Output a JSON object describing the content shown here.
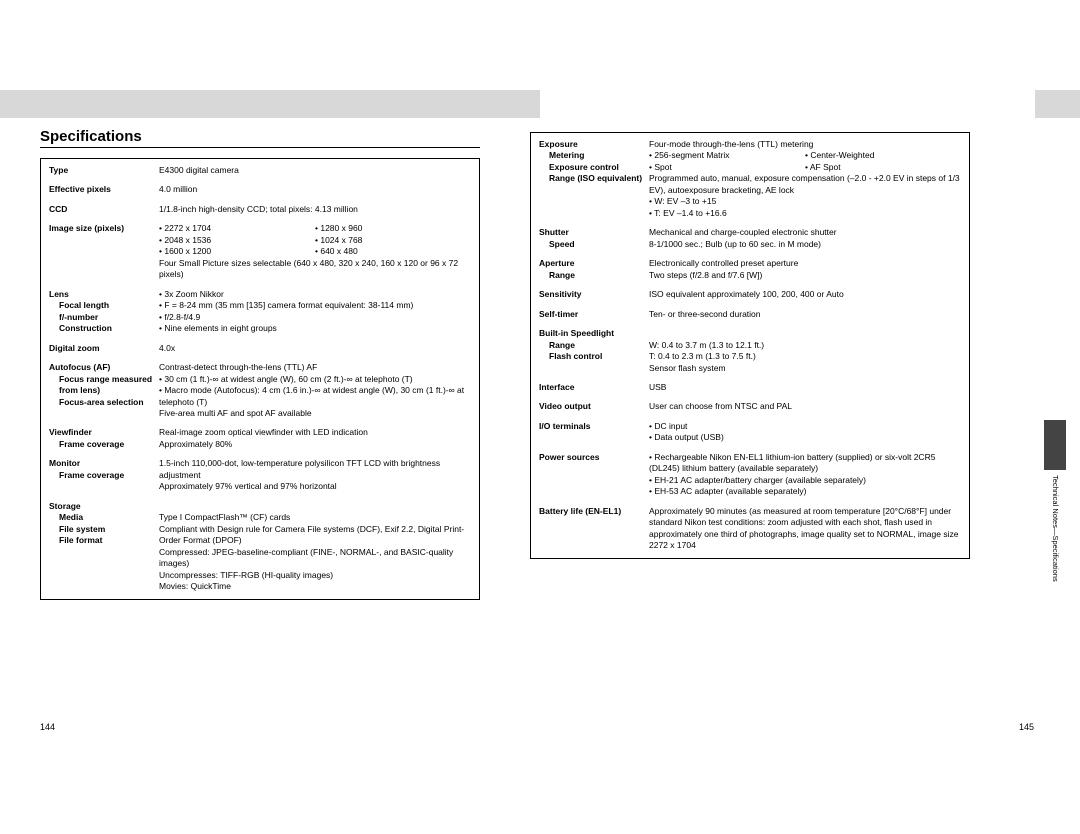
{
  "title": "Specifications",
  "page_left": "144",
  "page_right": "145",
  "side_label": "Technical Notes—Specifications",
  "left_rows": [
    {
      "label": "Type",
      "value": "E4300 digital camera"
    },
    {
      "label": "Effective pixels",
      "value": "4.0 million"
    },
    {
      "label": "CCD",
      "value": "1/1.8-inch high-density CCD; total pixels: 4.13 million"
    },
    {
      "label": "Image size (pixels)",
      "value_html": "sizes"
    },
    {
      "label": "Lens",
      "sublabels": [
        "Focal length",
        "",
        "f/-number",
        "Construction"
      ],
      "value_html": "lens"
    },
    {
      "label": "Digital zoom",
      "value": "4.0x"
    },
    {
      "label": "Autofocus (AF)",
      "sublabels": [
        "Focus range measured from lens)",
        "",
        "",
        "Focus-area selection"
      ],
      "value_html": "af"
    },
    {
      "label": "Viewfinder",
      "sublabels": [
        "Frame coverage"
      ],
      "value_html": "vf"
    },
    {
      "label": "Monitor",
      "sublabels": [
        "",
        "Frame coverage"
      ],
      "value_html": "mon"
    },
    {
      "label": "Storage",
      "sublabels": [
        "Media",
        "File system",
        "",
        "File format"
      ],
      "value_html": "storage"
    }
  ],
  "sizes": {
    "col1": [
      "• 2272 x 1704",
      "• 2048 x 1536",
      "• 1600 x 1200"
    ],
    "col2": [
      "• 1280 x 960",
      "• 1024 x 768",
      "• 640 x 480"
    ],
    "tail": "Four Small Picture sizes selectable (640 x 480, 320 x 240, 160 x 120 or 96 x 72 pixels)"
  },
  "lens": {
    "lines": [
      "• 3x Zoom Nikkor",
      "• F = 8-24 mm (35 mm [135] camera format equivalent: 38-114 mm)",
      "• f/2.8-f/4.9",
      "• Nine elements in eight groups"
    ]
  },
  "af": {
    "lines": [
      "Contrast-detect through-the-lens (TTL) AF",
      "• 30 cm (1 ft.)-∞ at widest angle (W), 60 cm (2 ft.)-∞ at telephoto (T)",
      "• Macro mode (Autofocus): 4 cm (1.6 in.)-∞ at widest angle (W), 30 cm (1 ft.)-∞ at telephoto (T)",
      "Five-area multi AF and spot AF available"
    ]
  },
  "vf": {
    "lines": [
      "Real-image zoom optical viewfinder with LED indication",
      "Approximately 80%"
    ]
  },
  "mon": {
    "lines": [
      "1.5-inch 110,000-dot, low-temperature polysilicon TFT LCD with brightness adjustment",
      "Approximately 97% vertical and 97% horizontal"
    ]
  },
  "storage": {
    "lines": [
      "",
      "Type I CompactFlash™ (CF) cards",
      "Compliant with Design rule for Camera File systems (DCF), Exif 2.2, Digital Print-Order Format (DPOF)",
      "Compressed: JPEG-baseline-compliant (FINE-, NORMAL-, and BASIC-quality images)",
      "Uncompresses: TIFF-RGB (HI-quality images)",
      "Movies: QuickTime"
    ]
  },
  "right_rows": [
    {
      "label": "Exposure",
      "sublabels": [
        "Metering",
        "",
        "Exposure control",
        "",
        "Range (ISO equivalent)"
      ],
      "value_html": "exposure"
    },
    {
      "label": "Shutter",
      "sublabels": [
        "Speed"
      ],
      "value_html": "shutter"
    },
    {
      "label": "Aperture",
      "sublabels": [
        "Range"
      ],
      "value_html": "aperture"
    },
    {
      "label": "Sensitivity",
      "value": "ISO equivalent approximately 100, 200, 400 or Auto"
    },
    {
      "label": "Self-timer",
      "value": "Ten- or three-second duration"
    },
    {
      "label": "Built-in Speedlight",
      "sublabels": [
        "Range",
        "",
        "Flash control"
      ],
      "value_html": "speedlight"
    },
    {
      "label": "Interface",
      "value": "USB"
    },
    {
      "label": "Video output",
      "value": "User can choose from NTSC and PAL"
    },
    {
      "label": "I/O terminals",
      "value_html": "io"
    },
    {
      "label": "Power sources",
      "value_html": "power"
    },
    {
      "label": "Battery life (EN-EL1)",
      "value_html": "battery"
    }
  ],
  "exposure": {
    "top": "Four-mode through-the-lens (TTL) metering",
    "m_col1": [
      "• 256-segment Matrix",
      "• Spot"
    ],
    "m_col2": [
      "• Center-Weighted",
      "• AF Spot"
    ],
    "ctrl": "Programmed auto, manual, exposure compensation (–2.0 - +2.0 EV in steps of 1/3 EV), autoexposure bracketing, AE lock",
    "range": [
      "• W: EV –3 to +15",
      "• T: EV –1.4 to +16.6"
    ]
  },
  "shutter": {
    "lines": [
      "Mechanical and charge-coupled electronic shutter",
      "8-1/1000 sec.; Bulb (up to 60 sec. in M mode)"
    ]
  },
  "aperture": {
    "lines": [
      "Electronically controlled preset aperture",
      "Two steps (f/2.8 and f/7.6 [W])"
    ]
  },
  "speedlight": {
    "lines": [
      "",
      "W: 0.4 to 3.7 m (1.3 to 12.1 ft.)",
      "T: 0.4 to 2.3 m (1.3 to 7.5 ft.)",
      "Sensor flash system"
    ]
  },
  "io": {
    "lines": [
      "• DC input",
      "• Data output (USB)"
    ]
  },
  "power": {
    "lines": [
      "• Rechargeable Nikon EN-EL1 lithium-ion battery (supplied) or six-volt 2CR5 (DL245) lithium battery (available separately)",
      "• EH-21 AC adapter/battery charger (available separately)",
      "• EH-53 AC adapter (available separately)"
    ]
  },
  "battery": {
    "lines": [
      "Approximately 90 minutes (as measured at room temperature [20°C/68°F] under standard Nikon test conditions: zoom adjusted with each shot, flash used in approximately one third of photographs, image quality set to NORMAL, image size 2272 x 1704"
    ]
  }
}
